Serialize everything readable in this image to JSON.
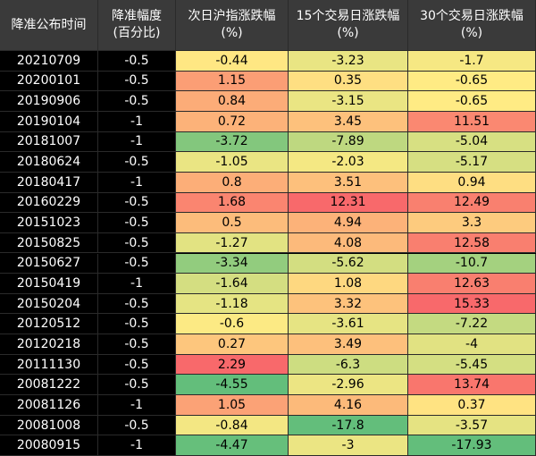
{
  "table": {
    "header": [
      [
        "降准公布时间"
      ],
      [
        "降准幅度",
        "(百分比)"
      ],
      [
        "次日沪指涨跌幅",
        "(%)"
      ],
      [
        "15个交易日涨跌幅",
        "(%)"
      ],
      [
        "30个交易日涨跌幅",
        "(%)"
      ]
    ],
    "rows": [
      [
        "20210709",
        -0.5,
        -0.44,
        -3.23,
        -1.7
      ],
      [
        "20200101",
        -0.5,
        1.15,
        0.35,
        -0.65
      ],
      [
        "20190906",
        -0.5,
        0.84,
        -3.15,
        -0.65
      ],
      [
        "20190104",
        -1,
        0.72,
        3.45,
        11.51
      ],
      [
        "20181007",
        -1,
        -3.72,
        -7.89,
        -5.04
      ],
      [
        "20180624",
        -0.5,
        -1.05,
        -2.03,
        -5.17
      ],
      [
        "20180417",
        -1,
        0.8,
        3.51,
        0.94
      ],
      [
        "20160229",
        -0.5,
        1.68,
        12.31,
        12.49
      ],
      [
        "20151023",
        -0.5,
        0.5,
        4.94,
        3.3
      ],
      [
        "20150825",
        -0.5,
        -1.27,
        4.08,
        12.58
      ],
      [
        "20150627",
        -0.5,
        -3.34,
        -5.62,
        -10.7
      ],
      [
        "20150419",
        -1,
        -1.64,
        1.08,
        12.63
      ],
      [
        "20150204",
        -0.5,
        -1.18,
        3.32,
        15.33
      ],
      [
        "20120512",
        -0.5,
        -0.6,
        -3.61,
        -7.22
      ],
      [
        "20120218",
        -0.5,
        0.27,
        3.49,
        -4
      ],
      [
        "20111130",
        -0.5,
        2.29,
        -6.3,
        -5.45
      ],
      [
        "20081222",
        -0.5,
        -4.55,
        -2.96,
        13.74
      ],
      [
        "20081126",
        -1,
        1.05,
        4.16,
        0.37
      ],
      [
        "20081008",
        -0.5,
        -0.84,
        -17.8,
        -3.57
      ],
      [
        "20080915",
        -1,
        -4.47,
        -3,
        -17.93
      ]
    ]
  }
}
